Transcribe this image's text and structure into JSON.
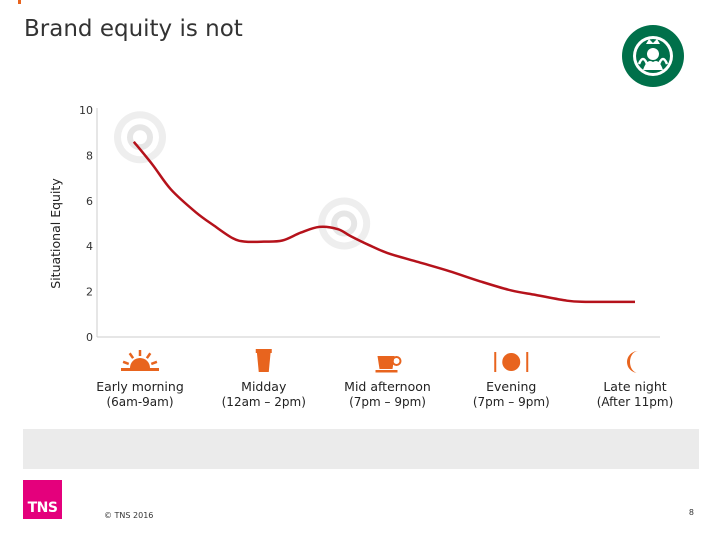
{
  "slide": {
    "title": "Brand equity is not",
    "page_number": "8",
    "copyright": "© TNS 2016",
    "tns_logo_text": "TNS",
    "logo_icon": "starbucks-siren-logo",
    "accent_color": "#e8641e",
    "brand_color": "#e4007c"
  },
  "chart_data": {
    "type": "line",
    "ylabel": "Situational Equity",
    "ylim": [
      0,
      10
    ],
    "yticks": [
      0,
      2,
      4,
      6,
      8,
      10
    ],
    "xlim": [
      0,
      4
    ],
    "grid": false,
    "line_color": "#b5121b",
    "categories": [
      {
        "label": "Early morning",
        "sub": "(6am-9am)",
        "icon": "sunrise-icon"
      },
      {
        "label": "Midday",
        "sub": "(12am – 2pm)",
        "icon": "cup-icon"
      },
      {
        "label": "Mid afternoon",
        "sub": "(7pm – 9pm)",
        "icon": "coffee-cup-icon"
      },
      {
        "label": "Evening",
        "sub": "(7pm – 9pm)",
        "icon": "dinner-plate-icon"
      },
      {
        "label": "Late night",
        "sub": "(After 11pm)",
        "icon": "crescent-moon-icon"
      }
    ],
    "series": [
      {
        "x": [
          -0.05,
          0.1,
          0.25,
          0.45,
          0.6,
          0.75,
          0.85,
          1.0,
          1.15,
          1.3,
          1.45,
          1.6,
          1.7,
          1.85,
          2.0,
          2.25,
          2.5,
          2.75,
          3.0,
          3.2,
          3.45,
          3.6,
          3.8,
          4.0
        ],
        "y": [
          8.6,
          7.6,
          6.5,
          5.5,
          4.9,
          4.35,
          4.2,
          4.2,
          4.25,
          4.6,
          4.85,
          4.75,
          4.45,
          4.05,
          3.7,
          3.3,
          2.9,
          2.45,
          2.05,
          1.85,
          1.6,
          1.55,
          1.55,
          1.55
        ]
      }
    ],
    "highlight_markers": [
      {
        "x": 0.0,
        "y": 8.8
      },
      {
        "x": 1.65,
        "y": 5.0
      }
    ]
  }
}
